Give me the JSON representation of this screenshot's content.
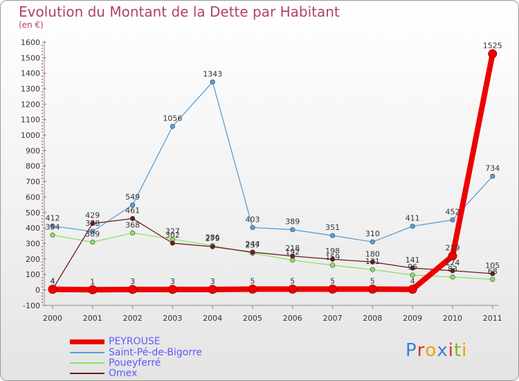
{
  "header": {
    "title": "Evolution du Montant de la Dette par Habitant",
    "subtitle": "(en €)"
  },
  "logo": {
    "text": "Proxiti",
    "letter_colors": [
      "#3a7fd5",
      "#e03020",
      "#f0a000",
      "#3a7fd5",
      "#e03020",
      "#7fb520",
      "#f0a000"
    ]
  },
  "chart_data": {
    "type": "line",
    "x": [
      "2000",
      "2001",
      "2002",
      "2003",
      "2004",
      "2005",
      "2006",
      "2007",
      "2008",
      "2009",
      "2010",
      "2011"
    ],
    "ylim": [
      -100,
      1600
    ],
    "yticks": [
      -100,
      0,
      100,
      200,
      300,
      400,
      500,
      600,
      700,
      800,
      900,
      1000,
      1100,
      1200,
      1300,
      1400,
      1500,
      1600
    ],
    "xlabel": "",
    "ylabel": "",
    "legend_position": "bottom-left",
    "grid": false,
    "series": [
      {
        "name": "PEYROUSE",
        "color": "#ee0000",
        "values": [
          4,
          1,
          3,
          3,
          3,
          5,
          5,
          5,
          5,
          4,
          219,
          1525
        ],
        "labels": [
          "4",
          "1",
          "3",
          "3",
          "3",
          "5",
          "5",
          "5",
          "5",
          "4",
          "219",
          "1525"
        ]
      },
      {
        "name": "Saint-Pé-de-Bigorre",
        "color": "#5a9fd4",
        "values": [
          412,
          378,
          549,
          1056,
          1343,
          403,
          389,
          351,
          310,
          411,
          452,
          734
        ],
        "labels": [
          "412",
          "378",
          "549",
          "1056",
          "1343",
          "403",
          "389",
          "351",
          "310",
          "411",
          "452",
          "734"
        ]
      },
      {
        "name": "Poueyferré",
        "color": "#90e060",
        "values": [
          354,
          309,
          368,
          327,
          286,
          237,
          192,
          159,
          131,
          96,
          83,
          68
        ],
        "labels": [
          "354",
          "309",
          "368",
          "327",
          "286",
          "237",
          "192",
          "159",
          "131",
          "96",
          "83",
          "68"
        ]
      },
      {
        "name": "Omex",
        "color": "#6b1a1a",
        "values": [
          4,
          429,
          461,
          302,
          279,
          244,
          218,
          198,
          180,
          141,
          124,
          105
        ],
        "labels": [
          "4",
          "429",
          "461",
          "302",
          "279",
          "244",
          "218",
          "198",
          "180",
          "141",
          "124",
          "105"
        ]
      }
    ]
  }
}
